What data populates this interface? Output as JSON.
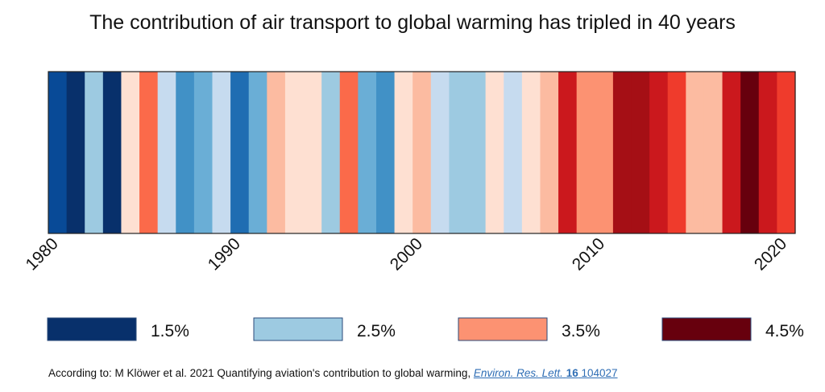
{
  "chart_data": {
    "type": "heatmap",
    "title": "The contribution of air transport to global warming has tripled in 40 years",
    "x_start": 1980,
    "x_end": 2021,
    "x_ticks": [
      1980,
      1990,
      2000,
      2010,
      2020
    ],
    "years": [
      1980,
      1981,
      1982,
      1983,
      1984,
      1985,
      1986,
      1987,
      1988,
      1989,
      1990,
      1991,
      1992,
      1993,
      1994,
      1995,
      1996,
      1997,
      1998,
      1999,
      2000,
      2001,
      2002,
      2003,
      2004,
      2005,
      2006,
      2007,
      2008,
      2009,
      2010,
      2011,
      2012,
      2013,
      2014,
      2015,
      2016,
      2017,
      2018,
      2019,
      2020
    ],
    "values": [
      1.7,
      1.5,
      2.5,
      1.5,
      3.1,
      3.6,
      2.8,
      2.1,
      2.2,
      2.7,
      1.8,
      2.2,
      3.2,
      3.1,
      3.0,
      2.4,
      3.6,
      2.3,
      2.0,
      3.1,
      3.3,
      2.8,
      2.5,
      2.5,
      3.1,
      2.8,
      3.1,
      3.3,
      4.0,
      3.5,
      3.5,
      4.2,
      4.2,
      4.0,
      3.9,
      3.3,
      3.3,
      4.1,
      4.5,
      4.0,
      3.8
    ],
    "colorscale": [
      "#08306b",
      "#084a97",
      "#1f6db2",
      "#4191c6",
      "#6aaed6",
      "#9dcae1",
      "#c6dbef",
      "#deebf7",
      "#fee0d2",
      "#fcbba1",
      "#fc9272",
      "#fb6a4a",
      "#ef3b2c",
      "#cb181d",
      "#a50f15",
      "#67000d"
    ],
    "legend": [
      {
        "label": "1.5%",
        "color": "#08306b"
      },
      {
        "label": "2.5%",
        "color": "#9dcae1"
      },
      {
        "label": "3.5%",
        "color": "#fc9272"
      },
      {
        "label": "4.5%",
        "color": "#67000d"
      }
    ]
  },
  "source": {
    "prefix": "According to: M Klöwer et al. 2021 Quantifying aviation's contribution to global warming, ",
    "journal": "Environ. Res. Lett.",
    "volume": "16",
    "article": " 104027"
  }
}
